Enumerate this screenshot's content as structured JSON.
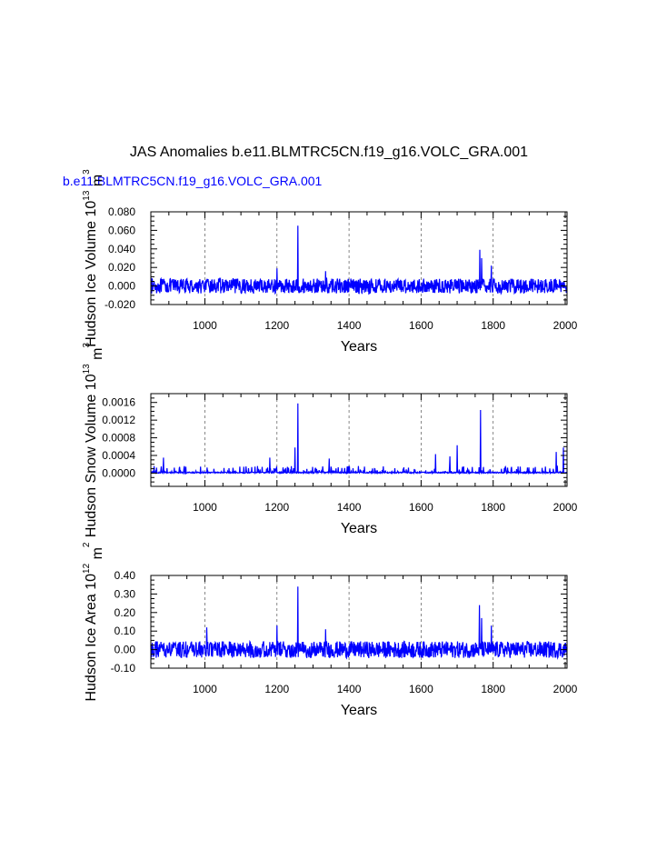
{
  "title": "JAS Anomalies b.e11.BLMTRC5CN.f19_g16.VOLC_GRA.001",
  "subtitle": "b.e11.BLMTRC5CN.f19_g16.VOLC_GRA.001",
  "colors": {
    "line": "#0000ff",
    "subtitle": "#0000ff",
    "axis": "#000000",
    "grid": "#555555"
  },
  "chart_data": [
    {
      "type": "line",
      "id": "ice-volume",
      "ylabel": "Hudson Ice Volume 10",
      "ylabel_exp": "13",
      "ylabel_unit": " m",
      "ylabel_unit_exp": "3",
      "xlabel": "Years",
      "xlim": [
        850,
        2005
      ],
      "ylim": [
        -0.02,
        0.08
      ],
      "xticks": [
        1000,
        1200,
        1400,
        1600,
        1800,
        2000
      ],
      "yticks": [
        -0.02,
        0.0,
        0.02,
        0.04,
        0.06,
        0.08
      ],
      "ytick_labels": [
        "-0.020",
        "0.000",
        "0.020",
        "0.040",
        "0.060",
        "0.080"
      ],
      "vlines": [
        1000,
        1200,
        1400,
        1600,
        1800
      ],
      "series": [
        {
          "name": "Hudson Ice Volume",
          "noise_amp": 0.008,
          "mode": "signed",
          "spikes": [
            [
              1258,
              0.065
            ],
            [
              1763,
              0.039
            ],
            [
              1768,
              0.03
            ],
            [
              1795,
              0.022
            ],
            [
              1200,
              0.019
            ],
            [
              1335,
              0.016
            ]
          ]
        }
      ]
    },
    {
      "type": "line",
      "id": "snow-volume",
      "ylabel": "Hudson Snow Volume 10",
      "ylabel_exp": "13",
      "ylabel_unit": " m",
      "ylabel_unit_exp": "3",
      "xlabel": "Years",
      "xlim": [
        850,
        2005
      ],
      "ylim": [
        -0.0003,
        0.0018
      ],
      "xticks": [
        1000,
        1200,
        1400,
        1600,
        1800,
        2000
      ],
      "yticks": [
        0.0,
        0.0004,
        0.0008,
        0.0012,
        0.0016
      ],
      "ytick_labels": [
        "0.0000",
        "0.0004",
        "0.0008",
        "0.0012",
        "0.0016"
      ],
      "vlines": [
        1000,
        1200,
        1400,
        1600,
        1800
      ],
      "series": [
        {
          "name": "Hudson Snow Volume",
          "noise_amp": 8e-05,
          "mode": "positive",
          "spikes": [
            [
              1258,
              0.00158
            ],
            [
              1765,
              0.00143
            ],
            [
              1700,
              0.00063
            ],
            [
              1250,
              0.00058
            ],
            [
              1995,
              0.00058
            ],
            [
              1975,
              0.00048
            ],
            [
              1640,
              0.00043
            ],
            [
              1680,
              0.00038
            ],
            [
              1345,
              0.00033
            ],
            [
              885,
              0.00035
            ],
            [
              1180,
              0.00035
            ]
          ]
        }
      ]
    },
    {
      "type": "line",
      "id": "ice-area",
      "ylabel": "Hudson Ice Area 10",
      "ylabel_exp": "12",
      "ylabel_unit": " m",
      "ylabel_unit_exp": "2",
      "xlabel": "Years",
      "xlim": [
        850,
        2005
      ],
      "ylim": [
        -0.1,
        0.4
      ],
      "xticks": [
        1000,
        1200,
        1400,
        1600,
        1800,
        2000
      ],
      "yticks": [
        -0.1,
        0.0,
        0.1,
        0.2,
        0.3,
        0.4
      ],
      "ytick_labels": [
        "-0.10",
        "0.00",
        "0.10",
        "0.20",
        "0.30",
        "0.40"
      ],
      "vlines": [
        1000,
        1200,
        1400,
        1600,
        1800
      ],
      "series": [
        {
          "name": "Hudson Ice Area",
          "noise_amp": 0.045,
          "mode": "signed",
          "spikes": [
            [
              1258,
              0.34
            ],
            [
              1762,
              0.24
            ],
            [
              1768,
              0.17
            ],
            [
              1795,
              0.13
            ],
            [
              1200,
              0.13
            ],
            [
              1005,
              0.12
            ],
            [
              1335,
              0.11
            ]
          ]
        }
      ]
    }
  ]
}
